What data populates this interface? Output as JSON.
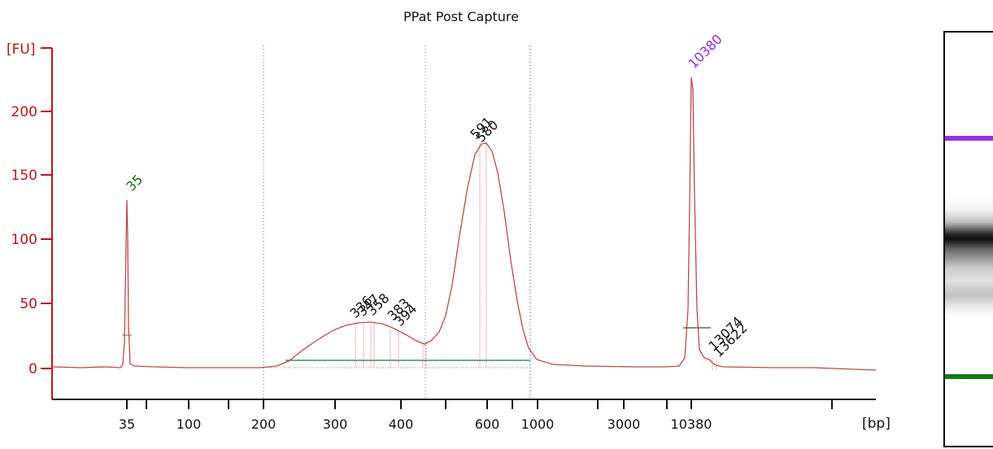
{
  "title": "PPat Post Capture",
  "colors": {
    "axis": "#b01a1a",
    "trace": "#b84b4b",
    "marker_low": "#1a6b1a",
    "marker_high": "#8a2be2",
    "baseline": "#3d8a6a",
    "label": "#111111"
  },
  "chart_data": {
    "type": "line",
    "title": "PPat Post Capture",
    "ylabel": "[FU]",
    "xlabel": "[bp]",
    "ylim": [
      -24,
      240
    ],
    "yticks": [
      0,
      50,
      100,
      150,
      200
    ],
    "xticks": [
      "35",
      "50",
      "100",
      "150",
      "200",
      "300",
      "400",
      "500",
      "600",
      "700",
      "1000",
      "2000",
      "3000",
      "7000",
      "10380",
      "15000"
    ],
    "xtick_labels": [
      "35",
      "",
      "100",
      "",
      "200",
      "300",
      "400",
      "",
      "600",
      "",
      "1000",
      "",
      "3000",
      "",
      "10380",
      ""
    ],
    "x_axis_scale": "nonlinear (electrophoresis time)",
    "peaks": [
      {
        "label": "35",
        "fu": 132,
        "role": "lower marker"
      },
      {
        "label": "336",
        "fu": 36
      },
      {
        "label": "347",
        "fu": 36
      },
      {
        "label": "358",
        "fu": 36
      },
      {
        "label": "383",
        "fu": 30
      },
      {
        "label": "394",
        "fu": 28
      },
      {
        "label": "580",
        "fu": 174
      },
      {
        "label": "591",
        "fu": 174
      },
      {
        "label": "10380",
        "fu": 228,
        "role": "upper marker"
      },
      {
        "label": "13074",
        "fu": 6
      },
      {
        "label": "13622",
        "fu": 4
      }
    ],
    "trace_points": [
      [
        "35",
        0
      ],
      [
        "35",
        3
      ],
      [
        "35",
        132
      ],
      [
        "35",
        3
      ],
      [
        "50",
        1
      ],
      [
        "100",
        0
      ],
      [
        "200",
        0
      ],
      [
        "220",
        1
      ],
      [
        "250",
        10
      ],
      [
        "280",
        22
      ],
      [
        "300",
        30
      ],
      [
        "336",
        36
      ],
      [
        "358",
        36
      ],
      [
        "383",
        31
      ],
      [
        "420",
        24
      ],
      [
        "460",
        18
      ],
      [
        "500",
        22
      ],
      [
        "530",
        60
      ],
      [
        "560",
        140
      ],
      [
        "590",
        174
      ],
      [
        "620",
        150
      ],
      [
        "650",
        80
      ],
      [
        "680",
        40
      ],
      [
        "720",
        12
      ],
      [
        "800",
        5
      ],
      [
        "1000",
        3
      ],
      [
        "3000",
        2
      ],
      [
        "7000",
        2
      ],
      [
        "10000",
        5
      ],
      [
        "10380",
        228
      ],
      [
        "10800",
        20
      ],
      [
        "13074",
        6
      ],
      [
        "15000",
        1
      ]
    ]
  },
  "peak_labels": [
    "35",
    "336",
    "347",
    "358",
    "383",
    "394",
    "580",
    "591",
    "10380",
    "13074",
    "13622"
  ],
  "gel": {
    "upper_marker": "10380",
    "lower_marker": "35"
  }
}
